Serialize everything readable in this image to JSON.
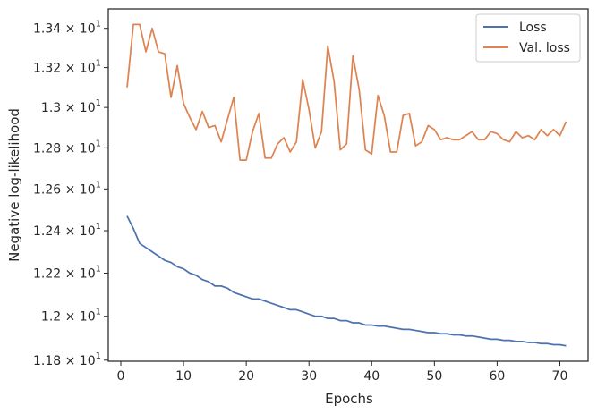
{
  "chart_data": {
    "type": "line",
    "xlabel": "Epochs",
    "ylabel": "Negative log-likelihood",
    "xlim": [
      -2,
      74.5
    ],
    "ylim": [
      11.795,
      13.5
    ],
    "x_ticks": [
      0,
      10,
      20,
      30,
      40,
      50,
      60,
      70
    ],
    "y_ticks": [
      {
        "value": 11.8,
        "mantissa": "1.18",
        "base": "10",
        "exp": "1"
      },
      {
        "value": 12.0,
        "mantissa": "1.2",
        "base": "10",
        "exp": "1"
      },
      {
        "value": 12.2,
        "mantissa": "1.22",
        "base": "10",
        "exp": "1"
      },
      {
        "value": 12.4,
        "mantissa": "1.24",
        "base": "10",
        "exp": "1"
      },
      {
        "value": 12.6,
        "mantissa": "1.26",
        "base": "10",
        "exp": "1"
      },
      {
        "value": 12.8,
        "mantissa": "1.28",
        "base": "10",
        "exp": "1"
      },
      {
        "value": 13.0,
        "mantissa": "1.3",
        "base": "10",
        "exp": "1"
      },
      {
        "value": 13.2,
        "mantissa": "1.32",
        "base": "10",
        "exp": "1"
      },
      {
        "value": 13.4,
        "mantissa": "1.34",
        "base": "10",
        "exp": "1"
      }
    ],
    "y_scale": "log",
    "grid": false,
    "legend_position": "top-right",
    "x": [
      1,
      2,
      3,
      4,
      5,
      6,
      7,
      8,
      9,
      10,
      11,
      12,
      13,
      14,
      15,
      16,
      17,
      18,
      19,
      20,
      21,
      22,
      23,
      24,
      25,
      26,
      27,
      28,
      29,
      30,
      31,
      32,
      33,
      34,
      35,
      36,
      37,
      38,
      39,
      40,
      41,
      42,
      43,
      44,
      45,
      46,
      47,
      48,
      49,
      50,
      51,
      52,
      53,
      54,
      55,
      56,
      57,
      58,
      59,
      60,
      61,
      62,
      63,
      64,
      65,
      66,
      67,
      68,
      69,
      70,
      71
    ],
    "series": [
      {
        "name": "Loss",
        "color": "#4c72b0",
        "values": [
          12.47,
          12.41,
          12.34,
          12.32,
          12.3,
          12.28,
          12.26,
          12.25,
          12.23,
          12.22,
          12.2,
          12.19,
          12.17,
          12.16,
          12.14,
          12.14,
          12.13,
          12.11,
          12.1,
          12.09,
          12.08,
          12.08,
          12.07,
          12.06,
          12.05,
          12.04,
          12.03,
          12.03,
          12.02,
          12.01,
          12.0,
          12.0,
          11.99,
          11.99,
          11.98,
          11.98,
          11.97,
          11.97,
          11.96,
          11.96,
          11.955,
          11.955,
          11.95,
          11.945,
          11.94,
          11.94,
          11.935,
          11.93,
          11.925,
          11.925,
          11.92,
          11.92,
          11.915,
          11.915,
          11.91,
          11.91,
          11.905,
          11.9,
          11.895,
          11.895,
          11.89,
          11.89,
          11.885,
          11.885,
          11.88,
          11.88,
          11.875,
          11.875,
          11.87,
          11.87,
          11.865
        ]
      },
      {
        "name": "Val. loss",
        "color": "#dd8452",
        "values": [
          13.1,
          13.42,
          13.42,
          13.28,
          13.4,
          13.28,
          13.27,
          13.05,
          13.21,
          13.02,
          12.95,
          12.89,
          12.98,
          12.9,
          12.91,
          12.83,
          12.94,
          13.05,
          12.74,
          12.74,
          12.88,
          12.97,
          12.75,
          12.75,
          12.82,
          12.85,
          12.78,
          12.83,
          13.14,
          12.99,
          12.8,
          12.88,
          13.31,
          13.13,
          12.79,
          12.82,
          13.26,
          13.09,
          12.79,
          12.77,
          13.06,
          12.96,
          12.78,
          12.78,
          12.96,
          12.97,
          12.81,
          12.83,
          12.91,
          12.89,
          12.84,
          12.85,
          12.84,
          12.84,
          12.86,
          12.88,
          12.84,
          12.84,
          12.88,
          12.87,
          12.84,
          12.83,
          12.88,
          12.85,
          12.86,
          12.84,
          12.89,
          12.86,
          12.89,
          12.86,
          12.93
        ]
      }
    ]
  }
}
